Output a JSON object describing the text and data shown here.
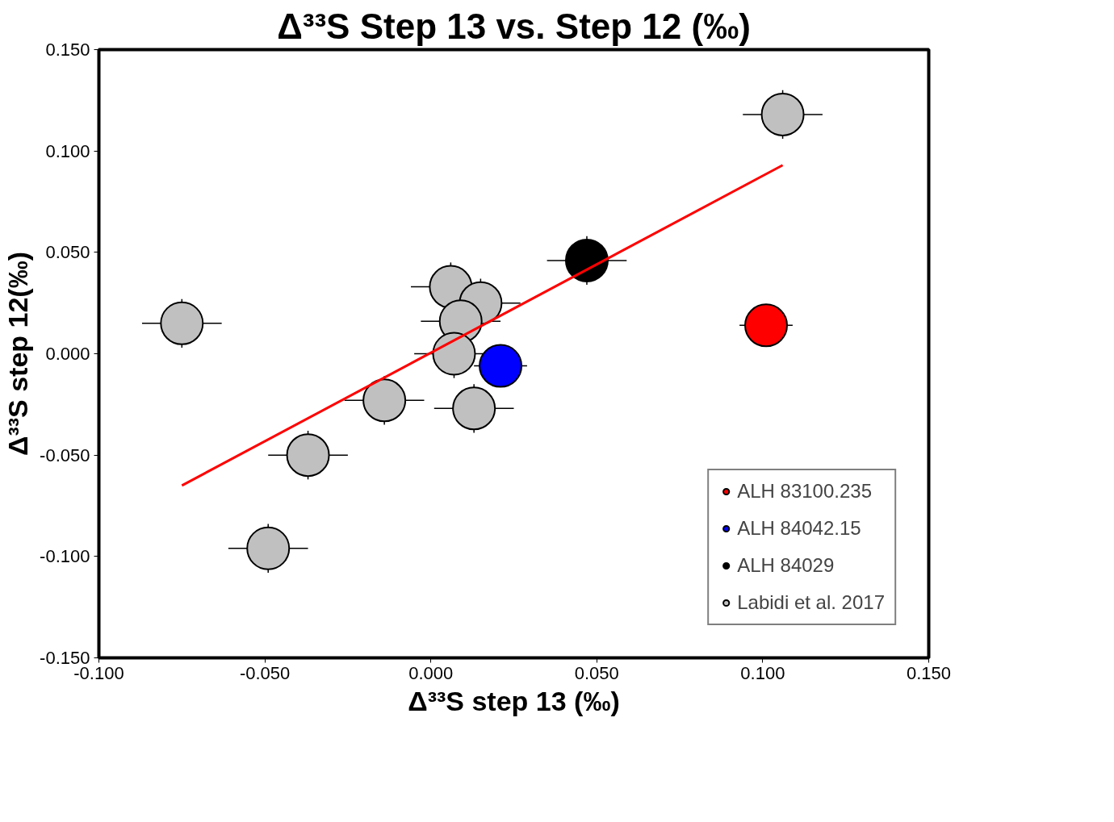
{
  "chart_data": {
    "type": "scatter",
    "title": "Δ³³S Step 13 vs. Step 12 (‰)",
    "xlabel": "Δ³³S step 13 (‰)",
    "ylabel": "Δ³³S step 12(‰)",
    "xlim": [
      -0.1,
      0.15
    ],
    "ylim": [
      -0.15,
      0.15
    ],
    "xticks": [
      {
        "value": -0.1,
        "label": "-0.100"
      },
      {
        "value": -0.05,
        "label": "-0.050"
      },
      {
        "value": 0,
        "label": "0.000"
      },
      {
        "value": 0.05,
        "label": "0.050"
      },
      {
        "value": 0.1,
        "label": "0.100"
      },
      {
        "value": 0.15,
        "label": "0.150"
      }
    ],
    "yticks": [
      {
        "value": -0.15,
        "label": "-0.150"
      },
      {
        "value": -0.1,
        "label": "-0.100"
      },
      {
        "value": -0.05,
        "label": "-0.050"
      },
      {
        "value": 0,
        "label": "0.000"
      },
      {
        "value": 0.05,
        "label": "0.050"
      },
      {
        "value": 0.1,
        "label": "0.100"
      },
      {
        "value": 0.15,
        "label": "0.150"
      }
    ],
    "grid": false,
    "legend": "bottom right",
    "marker": "circle",
    "series": [
      {
        "name": "ALH 83100.235",
        "color": "#ff0000",
        "x": [
          0.101
        ],
        "values": [
          0.014
        ],
        "xerrors": [
          0.008
        ]
      },
      {
        "name": "ALH 84042.15",
        "color": "#0000ff",
        "x": [
          0.021
        ],
        "values": [
          -0.006
        ],
        "xerrors": [
          0.008
        ]
      },
      {
        "name": "ALH 84029",
        "color": "#000000",
        "x": [
          0.047
        ],
        "values": [
          0.046
        ],
        "xerrors": [
          0.012
        ],
        "errors": [
          0.012
        ]
      },
      {
        "name": "Labidi et al. 2017",
        "color": "#c0c0c0",
        "x": [
          -0.075,
          0.106,
          0.006,
          0.015,
          0.009,
          0.007,
          -0.014,
          0.013,
          -0.037,
          -0.049
        ],
        "values": [
          0.015,
          0.118,
          0.033,
          0.025,
          0.016,
          0.0,
          -0.023,
          -0.027,
          -0.05,
          -0.096
        ],
        "xerrors": [
          0.012,
          0.012,
          0.012,
          0.012,
          0.012,
          0.012,
          0.012,
          0.012,
          0.012,
          0.012
        ],
        "errors": [
          0.012,
          0.012,
          0.012,
          0.012,
          0.012,
          0.012,
          0.012,
          0.012,
          0.012,
          0.012
        ]
      },
      {
        "type": "line",
        "color": "#ff0000",
        "x": [
          -0.075,
          0.106
        ],
        "values": [
          -0.065,
          0.093
        ],
        "line_style": "solid",
        "marker": "none"
      }
    ]
  }
}
